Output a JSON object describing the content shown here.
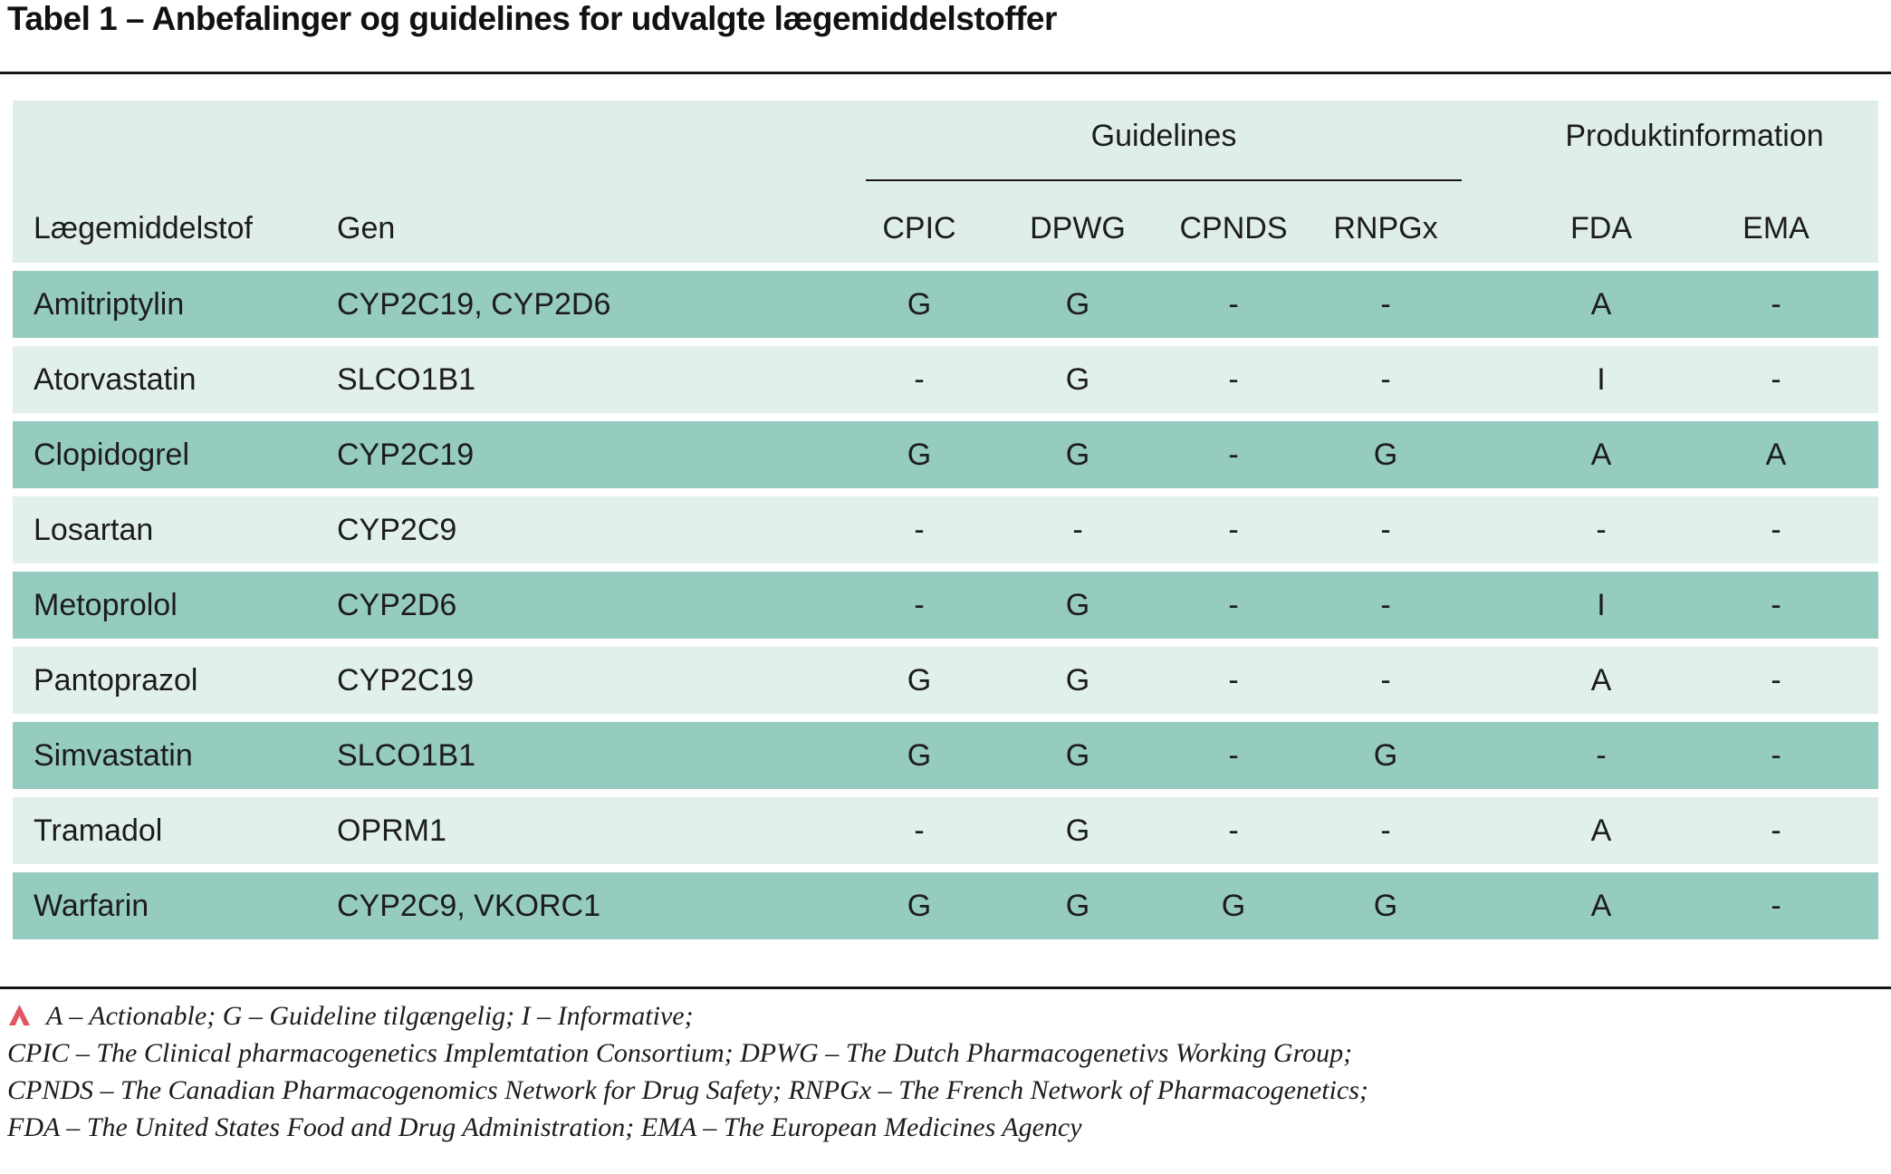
{
  "title": "Tabel 1 – Anbefalinger og guidelines for udvalgte lægemiddelstoffer",
  "table": {
    "group_headers": {
      "guidelines": "Guidelines",
      "produktinformation": "Produktinformation"
    },
    "columns": [
      "Lægemiddelstof",
      "Gen",
      "CPIC",
      "DPWG",
      "CPNDS",
      "RNPGx",
      "FDA",
      "EMA"
    ],
    "rows": [
      [
        "Amitriptylin",
        "CYP2C19, CYP2D6",
        "G",
        "G",
        "-",
        "-",
        "A",
        "-"
      ],
      [
        "Atorvastatin",
        "SLCO1B1",
        "-",
        "G",
        "-",
        "-",
        "I",
        "-"
      ],
      [
        "Clopidogrel",
        "CYP2C19",
        "G",
        "G",
        "-",
        "G",
        "A",
        "A"
      ],
      [
        "Losartan",
        "CYP2C9",
        "-",
        "-",
        "-",
        "-",
        "-",
        "-"
      ],
      [
        "Metoprolol",
        "CYP2D6",
        "-",
        "G",
        "-",
        "-",
        "I",
        "-"
      ],
      [
        "Pantoprazol",
        "CYP2C19",
        "G",
        "G",
        "-",
        "-",
        "A",
        "-"
      ],
      [
        "Simvastatin",
        "SLCO1B1",
        "G",
        "G",
        "-",
        "G",
        "-",
        "-"
      ],
      [
        "Tramadol",
        "OPRM1",
        "-",
        "G",
        "-",
        "-",
        "A",
        "-"
      ],
      [
        "Warfarin",
        "CYP2C9, VKORC1",
        "G",
        "G",
        "G",
        "G",
        "A",
        "-"
      ]
    ]
  },
  "footnotes": {
    "marker_icon": "caret-up-icon",
    "lines": [
      "A – Actionable; G – Guideline tilgængelig; I – Informative;",
      "CPIC – The Clinical pharmacogenetics Implemtation Consortium; DPWG – The Dutch Pharmacogenetivs Working Group;",
      "CPNDS – The Canadian Pharmacogenomics Network for Drug Safety; RNPGx – The French Network of Pharmacogenetics;",
      "FDA – The United States Food and Drug Administration; EMA – The European Medicines Agency"
    ]
  },
  "colors": {
    "row_dark": "#96cbc0",
    "row_light": "#e1f0ea",
    "header_band": "#dfeee9",
    "accent_red": "#e25663",
    "text": "#1c1c1c"
  }
}
